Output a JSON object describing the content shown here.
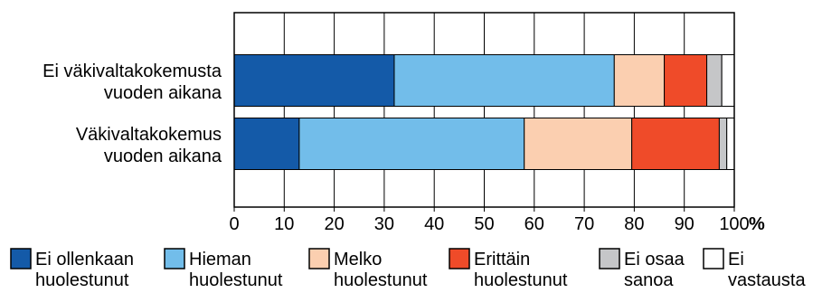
{
  "chart_data": {
    "type": "bar",
    "orientation": "horizontal",
    "stacked": true,
    "categories": [
      [
        "Ei väkivaltakokemusta",
        "vuoden aikana"
      ],
      [
        "Väkivaltakokemus",
        "vuoden aikana"
      ]
    ],
    "series": [
      {
        "name": [
          "Ei ollenkaan",
          "huolestunut"
        ],
        "color": "#145aa8",
        "values": [
          32,
          13
        ]
      },
      {
        "name": [
          "Hieman",
          "huolestunut"
        ],
        "color": "#72bdea",
        "values": [
          44,
          45
        ]
      },
      {
        "name": [
          "Melko",
          "huolestunut"
        ],
        "color": "#fbcfb0",
        "values": [
          10,
          21.5
        ]
      },
      {
        "name": [
          "Erittäin",
          "huolestunut"
        ],
        "color": "#ef4b29",
        "values": [
          8.5,
          17.5
        ]
      },
      {
        "name": [
          "Ei osaa",
          "sanoa"
        ],
        "color": "#c5c6c8",
        "values": [
          3,
          1.5
        ]
      },
      {
        "name": [
          "Ei",
          "vastausta"
        ],
        "color": "#ffffff",
        "values": [
          2.5,
          1.5
        ]
      }
    ],
    "xlim": [
      0,
      100
    ],
    "xticks": [
      0,
      10,
      20,
      30,
      40,
      50,
      60,
      70,
      80,
      90,
      100
    ],
    "unit": "%",
    "grid": {
      "vertical": true
    },
    "legend": "bottom"
  }
}
